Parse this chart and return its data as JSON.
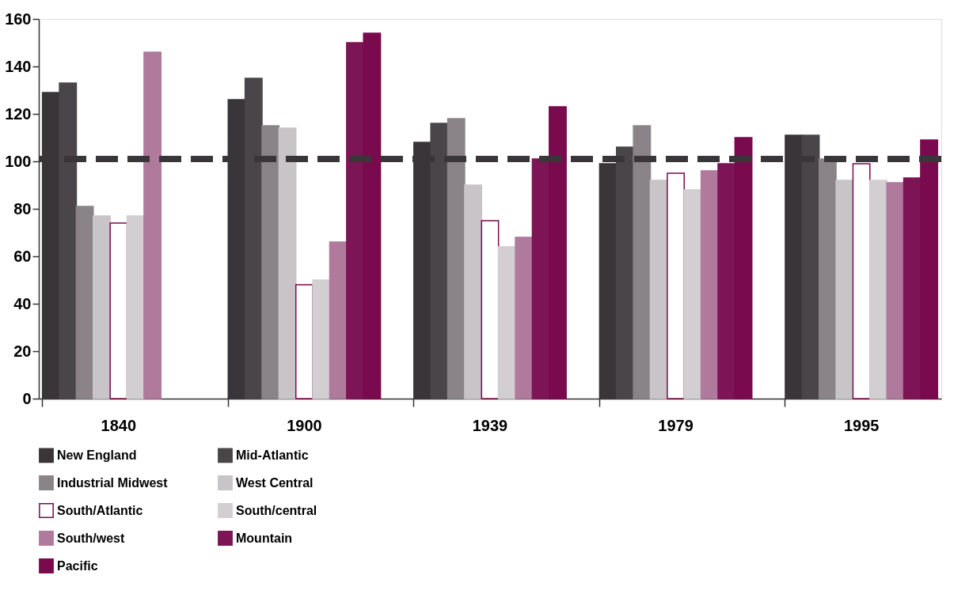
{
  "chart_data": {
    "type": "bar",
    "categories": [
      "1840",
      "1900",
      "1939",
      "1979",
      "1995"
    ],
    "series": [
      {
        "name": "New England",
        "color": "#3a3539",
        "values": [
          129,
          126,
          108,
          99,
          111
        ]
      },
      {
        "name": "Mid-Atlantic",
        "color": "#4a4548",
        "values": [
          133,
          135,
          116,
          106,
          111
        ]
      },
      {
        "name": "Industrial Midwest",
        "color": "#8a8489",
        "values": [
          81,
          115,
          118,
          115,
          101
        ]
      },
      {
        "name": "West Central",
        "color": "#c8c4c7",
        "values": [
          77,
          114,
          90,
          92,
          92
        ]
      },
      {
        "name": "South/Atlantic",
        "color": "#ffffff",
        "values": [
          74,
          48,
          75,
          95,
          99
        ]
      },
      {
        "name": "South/central",
        "color": "#d2ced1",
        "values": [
          77,
          50,
          64,
          88,
          92
        ]
      },
      {
        "name": "South/west",
        "color": "#b07a9c",
        "values": [
          146,
          66,
          68,
          96,
          91
        ]
      },
      {
        "name": "Mountain",
        "color": "#7c1456",
        "values": [
          null,
          150,
          101,
          99,
          93
        ]
      },
      {
        "name": "Pacific",
        "color": "#7a0a4e",
        "values": [
          null,
          154,
          123,
          110,
          109
        ]
      }
    ],
    "ylim": [
      0,
      160
    ],
    "yticks": [
      0,
      20,
      40,
      60,
      80,
      100,
      120,
      140,
      160
    ],
    "ref_lines": [
      {
        "axis": "y",
        "value": 101,
        "color": "#3a3539",
        "line_style": "dashed"
      }
    ],
    "grid": false,
    "legend": "bottom"
  }
}
